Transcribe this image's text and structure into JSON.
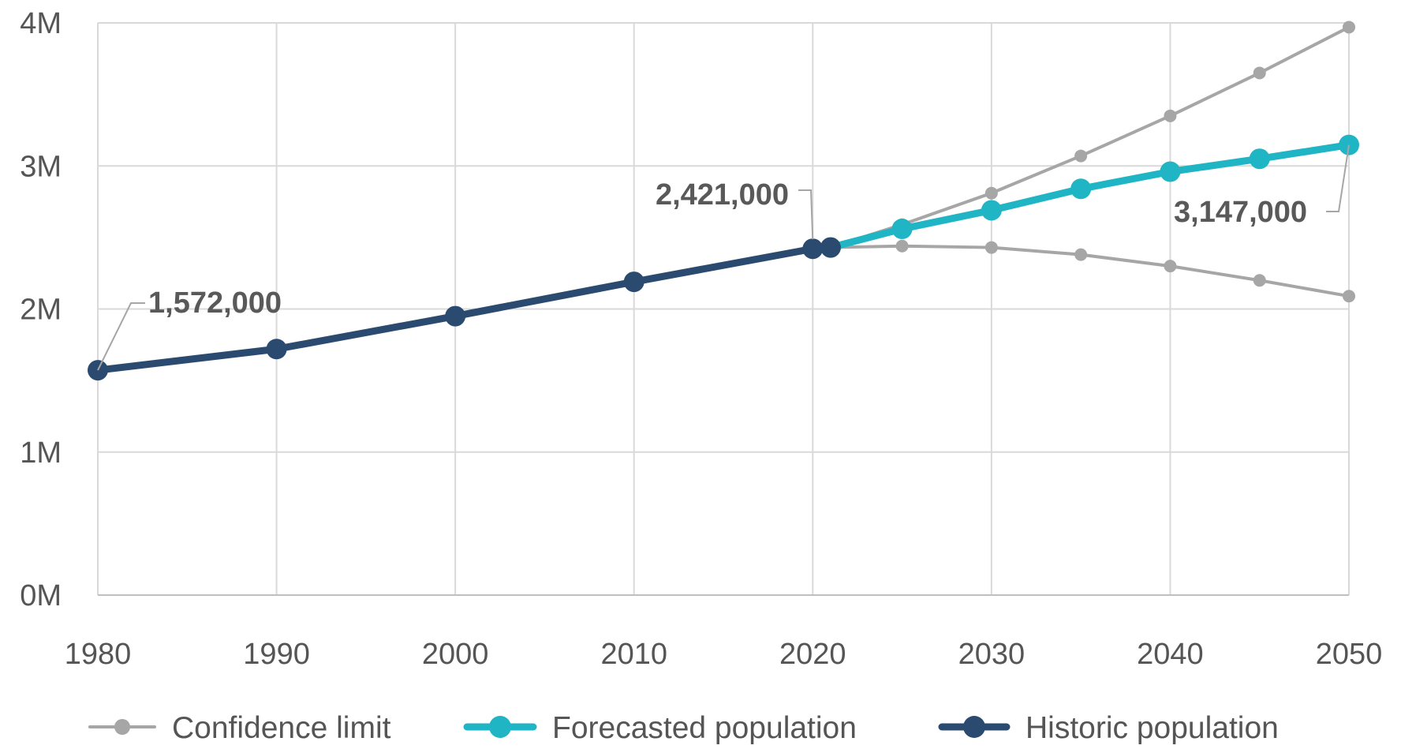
{
  "chart_data": {
    "type": "line",
    "title": "",
    "xlabel": "",
    "ylabel": "",
    "xlim": [
      1980,
      2050
    ],
    "ylim": [
      0,
      4000000
    ],
    "x_ticks": [
      1980,
      1990,
      2000,
      2010,
      2020,
      2030,
      2040,
      2050
    ],
    "x_tick_labels": [
      "1980",
      "1990",
      "2000",
      "2010",
      "2020",
      "2030",
      "2040",
      "2050"
    ],
    "y_ticks": [
      0,
      1000000,
      2000000,
      3000000,
      4000000
    ],
    "y_tick_labels": [
      "0M",
      "1M",
      "2M",
      "3M",
      "4M"
    ],
    "grid": true,
    "legend_position": "bottom",
    "series": [
      {
        "name": "Confidence limit",
        "role": "upper",
        "color": "#a6a6a6",
        "x": [
          2021,
          2025,
          2030,
          2035,
          2040,
          2045,
          2050
        ],
        "y": [
          2430000,
          2590000,
          2810000,
          3070000,
          3350000,
          3650000,
          3970000
        ]
      },
      {
        "name": "Confidence limit",
        "role": "lower",
        "color": "#a6a6a6",
        "x": [
          2021,
          2025,
          2030,
          2035,
          2040,
          2045,
          2050
        ],
        "y": [
          2430000,
          2440000,
          2430000,
          2380000,
          2300000,
          2200000,
          2090000
        ]
      },
      {
        "name": "Forecasted population",
        "color": "#1fb5c4",
        "x": [
          2021,
          2025,
          2030,
          2035,
          2040,
          2045,
          2050
        ],
        "y": [
          2430000,
          2560000,
          2690000,
          2840000,
          2960000,
          3050000,
          3147000
        ]
      },
      {
        "name": "Historic population",
        "color": "#2b4a6f",
        "x": [
          1980,
          1990,
          2000,
          2010,
          2020,
          2021
        ],
        "y": [
          1572000,
          1720000,
          1950000,
          2190000,
          2421000,
          2430000
        ]
      }
    ],
    "annotations": [
      {
        "text": "1,572,000",
        "x": 1980,
        "y": 1572000
      },
      {
        "text": "2,421,000",
        "x": 2020,
        "y": 2421000
      },
      {
        "text": "3,147,000",
        "x": 2050,
        "y": 3147000
      }
    ],
    "legend": [
      {
        "label": "Confidence limit",
        "color": "#a6a6a6"
      },
      {
        "label": "Forecasted population",
        "color": "#1fb5c4"
      },
      {
        "label": "Historic population",
        "color": "#2b4a6f"
      }
    ]
  }
}
